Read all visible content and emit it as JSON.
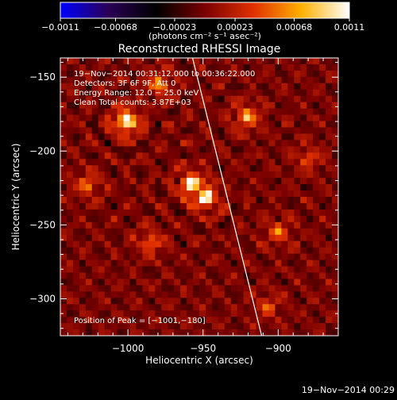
{
  "chart_data": {
    "type": "heatmap",
    "title": "Reconstructed RHESSI Image",
    "xlabel": "Heliocentric X (arcsec)",
    "ylabel": "Heliocentric Y (arcsec)",
    "xlim": [
      -1045,
      -860
    ],
    "ylim": [
      -325,
      -137
    ],
    "x_ticks": [
      -1000,
      -950,
      -900
    ],
    "x_tick_labels": [
      "−1000",
      "−950",
      "−900"
    ],
    "y_ticks": [
      -150,
      -200,
      -250,
      -300
    ],
    "y_tick_labels": [
      "−150",
      "−200",
      "−250",
      "−300"
    ],
    "grid": false,
    "colorbar": {
      "position": "top",
      "ticks": [
        -0.0011,
        -0.00068,
        -0.00023,
        0.00023,
        0.00068,
        0.0011
      ],
      "tick_labels": [
        "−0.0011",
        "−0.00068",
        "−0.00023",
        "0.00023",
        "0.00068",
        "0.0011"
      ],
      "units_label": "(photons cm⁻² s⁻¹ asec⁻²)",
      "colors": [
        "#0000ff",
        "#2a0055",
        "#000000",
        "#7a0000",
        "#e03000",
        "#ffb000",
        "#ffffff"
      ]
    },
    "annotations": {
      "time_range": "19−Nov−2014 00:31:12.000 to 00:36:22.000",
      "detectors": "Detectors: 3F 6F 9F, Att 0",
      "energy": "Energy Range: 12.0 − 25.0 keV",
      "method": "Clean    Total counts: 3.87E+03",
      "peak": "Position of Peak = [−1001,−180]"
    },
    "peak": [
      -1001,
      -180
    ],
    "limb_line": [
      [
        -957,
        -137
      ],
      [
        -911,
        -325
      ]
    ],
    "bright_sources": [
      {
        "x": -1001,
        "y": -180,
        "value": 0.0011
      },
      {
        "x": -958,
        "y": -222,
        "value": 0.0009
      },
      {
        "x": -948,
        "y": -232,
        "value": 0.0009
      },
      {
        "x": -921,
        "y": -177,
        "value": 0.0007
      },
      {
        "x": -979,
        "y": -155,
        "value": 0.0006
      },
      {
        "x": -1027,
        "y": -223,
        "value": 0.0005
      },
      {
        "x": -900,
        "y": -255,
        "value": 0.0005
      },
      {
        "x": -985,
        "y": -262,
        "value": 0.0005
      },
      {
        "x": -907,
        "y": -305,
        "value": 0.0004
      },
      {
        "x": -880,
        "y": -205,
        "value": 0.0004
      }
    ]
  },
  "footer_timestamp": "19−Nov−2014 00:29"
}
